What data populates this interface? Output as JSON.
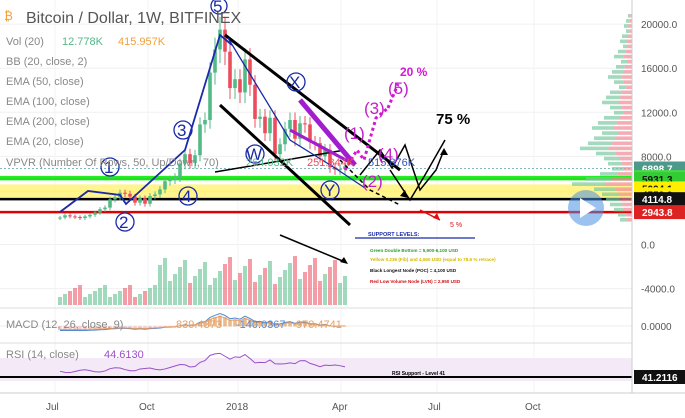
{
  "header": {
    "title": "Bitcoin / Dollar, 1W, BITFINEX",
    "vol_label": "Vol (20)",
    "vol_value_1": "12.778K",
    "vol_value_2": "415.957K",
    "bb_label": "BB (20, close, 2)",
    "ema_labels": [
      "EMA (50, close)",
      "EMA (100, close)",
      "EMA (200, close)",
      "EMA (20, close)"
    ],
    "vpvr_label": "VPVR (Number Of Rows, 50, Up/Down, 70)",
    "vpvr_values": [
      "264.032K",
      "251.844K",
      "515.876K"
    ]
  },
  "macd": {
    "label": "MACD (12, 26, close, 9)",
    "values": [
      "839.4373",
      "-140.0367",
      "979.4741"
    ]
  },
  "rsi": {
    "label": "RSI (14, close)",
    "value": "44.6130",
    "support_label": "RSI Support - Level 41"
  },
  "annotations": {
    "support_title": "SUPPORT LEVELS:",
    "legend": [
      {
        "text": "Green Double Bottom = 5,900-6,100 USD",
        "color": "#2e9e2e"
      },
      {
        "text": "Yellow 0.236 (Fib) and 4,550 USD (equal to 78.6 % retrace)",
        "color": "#d4b800"
      },
      {
        "text": "Black Longest Node (POC) = 4,100 USD",
        "color": "#111111"
      },
      {
        "text": "Red Low Volume Node (LVN) = 2,950 USD",
        "color": "#cc1111"
      }
    ],
    "pct_20": "20 %",
    "pct_75": "75 %",
    "pct_5": "5 %",
    "waves": [
      "5",
      "X",
      "W",
      "Y",
      "3",
      "4",
      "1",
      "2"
    ],
    "waves_magenta": [
      "(1)",
      "(2)",
      "(3)",
      "(4)",
      "(5)"
    ]
  },
  "chart_data": {
    "type": "candlestick",
    "price_axis": {
      "ticks": [
        20000.0,
        16000.0,
        12000.0,
        8000.0,
        4000.0,
        0.0,
        -4000.0
      ],
      "ylim": [
        -6000,
        22000
      ]
    },
    "macd_axis": {
      "ticks": [
        0.0
      ]
    },
    "price_tags": [
      {
        "value": "6898.7",
        "color": "#4d9a8a"
      },
      {
        "value": "6113.9",
        "color": "#44dd44"
      },
      {
        "value": "5931.3",
        "color": "#33cc33"
      },
      {
        "value": "5094.1",
        "color": "#ffee00"
      },
      {
        "value": "4553.9",
        "color": "#ffee00"
      },
      {
        "value": "4114.8",
        "color": "#111111"
      },
      {
        "value": "2943.8",
        "color": "#dd2222"
      }
    ],
    "rsi_tag": "41.2116",
    "x_ticks": [
      "Jul",
      "Oct",
      "2018",
      "Apr",
      "Jul",
      "Oct"
    ],
    "closes": [
      2450,
      2650,
      2550,
      2500,
      2400,
      2550,
      2700,
      2900,
      3200,
      3350,
      4100,
      4300,
      4700,
      4600,
      4350,
      3800,
      4200,
      3700,
      4400,
      4550,
      5000,
      5750,
      5900,
      6100,
      7350,
      8200,
      7400,
      8100,
      10900,
      11300,
      15600,
      17700,
      19500,
      17500,
      14200,
      15000,
      13800,
      16800,
      14500,
      11400,
      11600,
      10100,
      11500,
      8200,
      9100,
      10500,
      11300,
      9600,
      11000,
      10900,
      9300,
      9200,
      8000,
      8600,
      7000,
      6800,
      6850,
      7100
    ],
    "colors": {
      "up": "#53b987",
      "down": "#eb4d5c"
    },
    "horizontal_levels": [
      {
        "value": 6898.7,
        "color": "#d6eef0"
      },
      {
        "value": 6113.9,
        "color": "#22ee22"
      },
      {
        "value": 5931.3,
        "color": "#22dd22"
      },
      {
        "value": 5094.1,
        "color": "#fff27a"
      },
      {
        "value": 4553.9,
        "color": "#fff27a"
      },
      {
        "value": 4114.8,
        "color": "#000000"
      },
      {
        "value": 2943.8,
        "color": "#dd0000"
      }
    ]
  }
}
